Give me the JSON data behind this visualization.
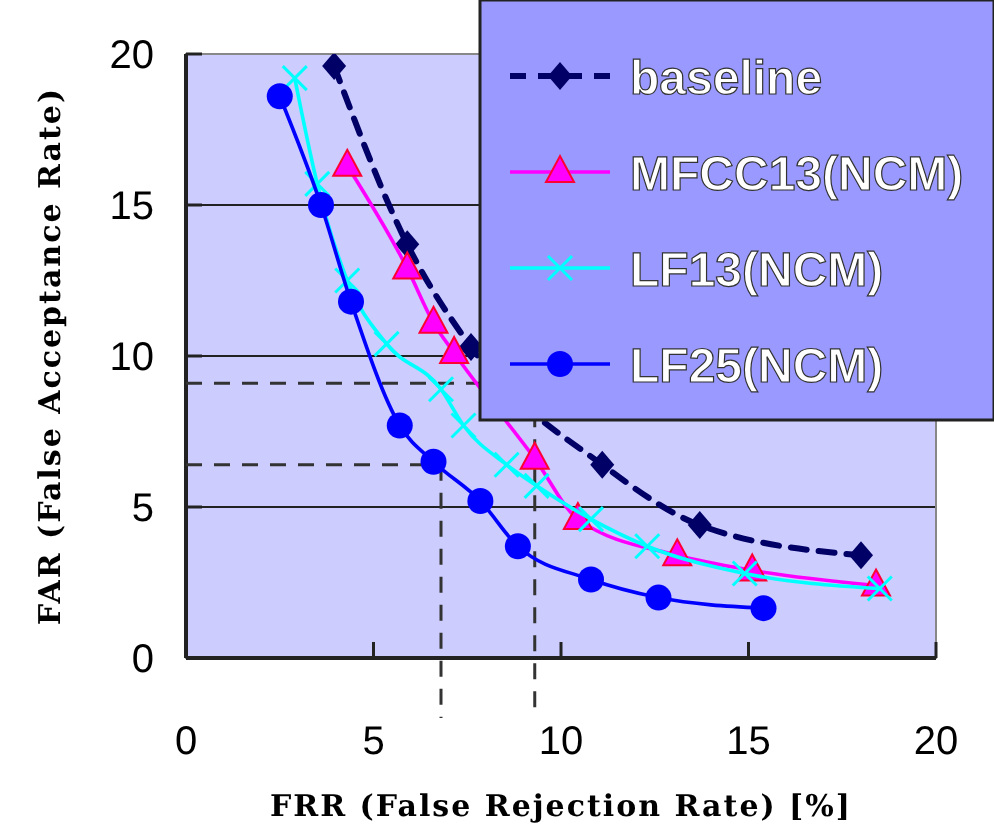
{
  "chart_data": {
    "type": "line",
    "xlabel": "FRR (False Rejection Rate) [%]",
    "ylabel": "FAR (False Acceptance Rate)",
    "xlim": [
      0,
      20
    ],
    "ylim": [
      0,
      20
    ],
    "xticks": [
      0,
      5,
      10,
      15,
      20
    ],
    "yticks": [
      0,
      5,
      10,
      15,
      20
    ],
    "grid": "y",
    "legend": "top right",
    "series": [
      {
        "name": "baseline",
        "color": "#000066",
        "marker": "diamond",
        "line_style": "dashed",
        "x": [
          3.95,
          5.9,
          7.6,
          11.1,
          13.7,
          18.0
        ],
        "values": [
          19.6,
          13.7,
          10.3,
          6.4,
          4.4,
          3.4
        ]
      },
      {
        "name": "MFCC13(NCM)",
        "color": "#ff00ff",
        "marker": "triangle",
        "line_style": "solid",
        "x": [
          4.3,
          5.9,
          6.6,
          7.15,
          9.3,
          10.45,
          13.1,
          15.1,
          18.4
        ],
        "values": [
          16.3,
          12.9,
          11.1,
          10.1,
          6.6,
          4.6,
          3.4,
          2.9,
          2.4
        ]
      },
      {
        "name": "LF13(NCM)",
        "color": "#00ffff",
        "marker": "cross",
        "line_style": "solid",
        "x": [
          2.9,
          3.5,
          4.3,
          5.35,
          6.8,
          7.4,
          8.55,
          9.35,
          10.8,
          12.3,
          14.9,
          18.5
        ],
        "values": [
          19.2,
          15.7,
          12.5,
          10.4,
          8.9,
          7.7,
          6.4,
          5.7,
          4.6,
          3.7,
          2.8,
          2.3
        ]
      },
      {
        "name": "LF25(NCM)",
        "color": "#0000ff",
        "marker": "circle",
        "line_style": "solid",
        "x": [
          2.5,
          3.6,
          4.4,
          5.7,
          6.6,
          7.85,
          8.85,
          10.8,
          12.6,
          15.4
        ],
        "values": [
          18.6,
          15.0,
          11.8,
          7.7,
          6.5,
          5.2,
          3.7,
          2.6,
          2.0,
          1.65
        ]
      }
    ],
    "ref_lines": [
      {
        "axis": "y",
        "value": 9.1,
        "line_style": "dashed",
        "color": "#333333"
      },
      {
        "axis": "x",
        "value": 9.3,
        "line_style": "dashed",
        "color": "#333333"
      },
      {
        "axis": "y",
        "value": 6.4,
        "line_style": "dashed",
        "color": "#333333"
      },
      {
        "axis": "x",
        "value": 6.8,
        "line_style": "dashed",
        "color": "#333333"
      }
    ]
  }
}
